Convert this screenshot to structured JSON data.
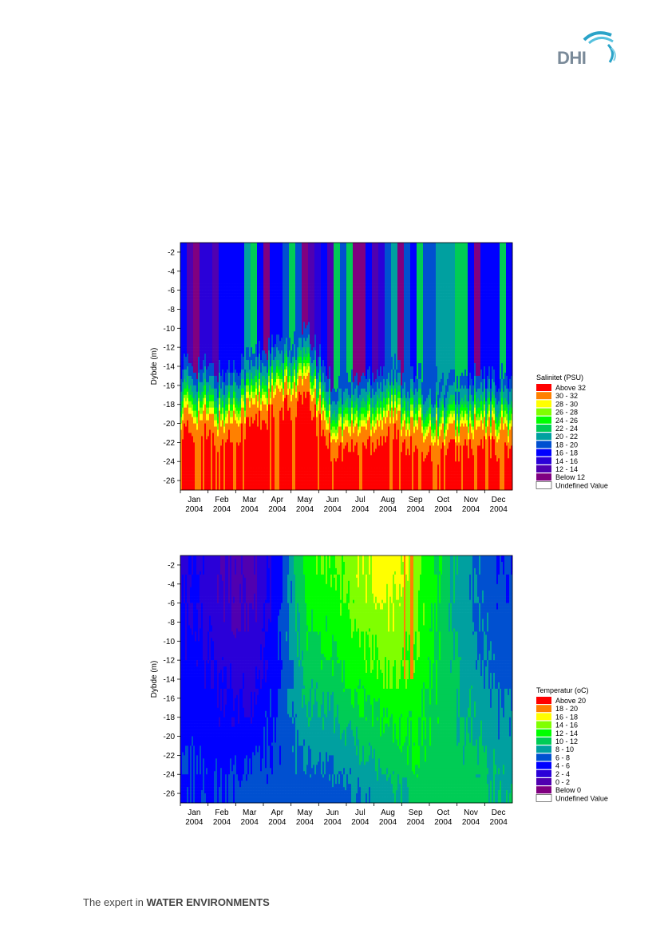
{
  "logo": {
    "text": "DHI"
  },
  "footer": {
    "prefix": "The expert in ",
    "bold": "WATER ENVIRONMENTS"
  },
  "chart_data": [
    {
      "type": "heatmap",
      "ylabel": "Dybde (m)",
      "x_ticks": [
        {
          "month": "Jan",
          "year": "2004"
        },
        {
          "month": "Feb",
          "year": "2004"
        },
        {
          "month": "Mar",
          "year": "2004"
        },
        {
          "month": "Apr",
          "year": "2004"
        },
        {
          "month": "May",
          "year": "2004"
        },
        {
          "month": "Jun",
          "year": "2004"
        },
        {
          "month": "Jul",
          "year": "2004"
        },
        {
          "month": "Aug",
          "year": "2004"
        },
        {
          "month": "Sep",
          "year": "2004"
        },
        {
          "month": "Oct",
          "year": "2004"
        },
        {
          "month": "Nov",
          "year": "2004"
        },
        {
          "month": "Dec",
          "year": "2004"
        }
      ],
      "y_ticks": [
        "-2",
        "-4",
        "-6",
        "-8",
        "-10",
        "-12",
        "-14",
        "-16",
        "-18",
        "-20",
        "-22",
        "-24",
        "-26"
      ],
      "ylim": [
        -27,
        -1
      ],
      "legend": {
        "title": "Salinitet (PSU)",
        "items": [
          {
            "label": "Above 32",
            "color": "#ff0000"
          },
          {
            "label": "30 - 32",
            "color": "#ff8000"
          },
          {
            "label": "28 - 30",
            "color": "#ffff00"
          },
          {
            "label": "26 - 28",
            "color": "#80ff00"
          },
          {
            "label": "24 - 26",
            "color": "#00ff00"
          },
          {
            "label": "22 - 24",
            "color": "#00cc55"
          },
          {
            "label": "20 - 22",
            "color": "#00a0a0"
          },
          {
            "label": "18 - 20",
            "color": "#0050d0"
          },
          {
            "label": "16 - 18",
            "color": "#0000ff"
          },
          {
            "label": "14 - 16",
            "color": "#2a00d8"
          },
          {
            "label": "12 - 14",
            "color": "#5000b0"
          },
          {
            "label": "Below 12",
            "color": "#800080"
          },
          {
            "label": "Undefined Value",
            "color": "#ffffff"
          }
        ]
      },
      "interface_depth_by_month": [
        -17.5,
        -18.5,
        -16.5,
        -15.5,
        -14.0,
        -19.5,
        -19.0,
        -17.5,
        -19.0,
        -19.5,
        -19.0,
        -19.0
      ],
      "surface_color_sequence": [
        "#0000ff",
        "#00a0a0",
        "#0050d0",
        "#0000ff",
        "#2a00d8",
        "#5000b0",
        "#0000ff",
        "#0050d0",
        "#800080",
        "#0000ff",
        "#00a0a0",
        "#0000ff",
        "#00cc55",
        "#0000ff",
        "#5000b0",
        "#0050d0",
        "#0000ff",
        "#00a0a0",
        "#800080",
        "#0000ff",
        "#0050d0",
        "#00cc55",
        "#0000ff",
        "#00a0a0"
      ]
    },
    {
      "type": "heatmap",
      "ylabel": "Dybde (m)",
      "x_ticks": [
        {
          "month": "Jan",
          "year": "2004"
        },
        {
          "month": "Feb",
          "year": "2004"
        },
        {
          "month": "Mar",
          "year": "2004"
        },
        {
          "month": "Apr",
          "year": "2004"
        },
        {
          "month": "May",
          "year": "2004"
        },
        {
          "month": "Jun",
          "year": "2004"
        },
        {
          "month": "Jul",
          "year": "2004"
        },
        {
          "month": "Aug",
          "year": "2004"
        },
        {
          "month": "Sep",
          "year": "2004"
        },
        {
          "month": "Oct",
          "year": "2004"
        },
        {
          "month": "Nov",
          "year": "2004"
        },
        {
          "month": "Dec",
          "year": "2004"
        }
      ],
      "y_ticks": [
        "-2",
        "-4",
        "-6",
        "-8",
        "-10",
        "-12",
        "-14",
        "-16",
        "-18",
        "-20",
        "-22",
        "-24",
        "-26"
      ],
      "ylim": [
        -27,
        -1
      ],
      "legend": {
        "title": "Temperatur (oC)",
        "items": [
          {
            "label": "Above 20",
            "color": "#ff0000"
          },
          {
            "label": "18 - 20",
            "color": "#ff8000"
          },
          {
            "label": "16 - 18",
            "color": "#ffff00"
          },
          {
            "label": "14 - 16",
            "color": "#80ff00"
          },
          {
            "label": "12 - 14",
            "color": "#00ff00"
          },
          {
            "label": "10 - 12",
            "color": "#00cc55"
          },
          {
            "label": "8 - 10",
            "color": "#00a0a0"
          },
          {
            "label": "6 - 8",
            "color": "#0050d0"
          },
          {
            "label": "4 - 6",
            "color": "#0000ff"
          },
          {
            "label": "2 - 4",
            "color": "#2a00d8"
          },
          {
            "label": "0 - 2",
            "color": "#5000b0"
          },
          {
            "label": "Below 0",
            "color": "#800080"
          },
          {
            "label": "Undefined Value",
            "color": "#ffffff"
          }
        ]
      },
      "surface_temperature_by_month": [
        4,
        2,
        1,
        5,
        13,
        14,
        16,
        17,
        15,
        11,
        8,
        6
      ],
      "bottom_temperature_by_month": [
        6,
        6,
        7,
        7,
        7,
        7,
        8,
        9,
        11,
        11,
        11,
        10
      ]
    }
  ]
}
